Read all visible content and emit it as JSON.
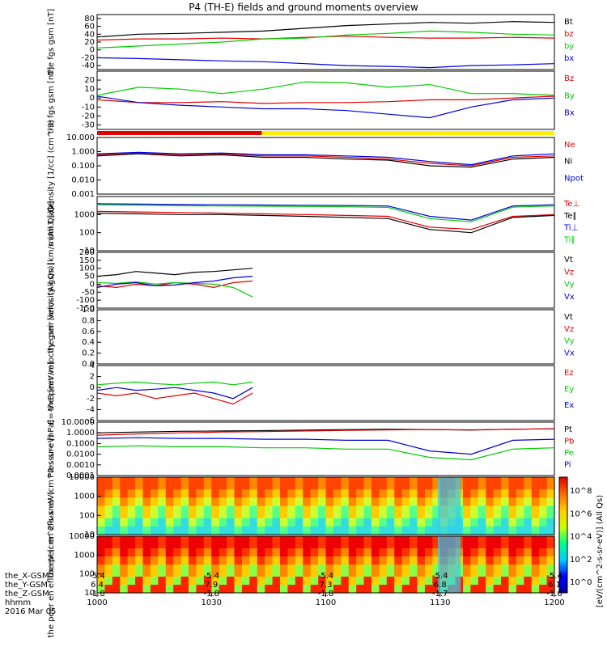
{
  "title": "P4 (TH-E) fields and ground moments overview",
  "colors": {
    "black": "#000000",
    "red": "#e00000",
    "green": "#00cc00",
    "blue": "#0000dd",
    "gold": "#ffee00"
  },
  "footer": {
    "row_labels": [
      "the_X-GSM",
      "the_Y-GSM",
      "the_Z-GSM",
      "hhmm",
      "2016 Mar 05"
    ],
    "columns": [
      {
        "x": "-5.4",
        "y": "6.4",
        "z": "-1.8",
        "t": "1000"
      },
      {
        "x": "-5.4",
        "y": "7.9",
        "z": "-1.8",
        "t": "1030"
      },
      {
        "x": "-5.4",
        "y": "7.3",
        "z": "-1.8",
        "t": "1100"
      },
      {
        "x": "-5.4",
        "y": "6.8",
        "z": "-1.7",
        "t": "1130"
      },
      {
        "x": "-5.4",
        "y": "6.1",
        "z": "-1.6",
        "t": "1200"
      }
    ]
  },
  "colorbar_label": "[eV/(cm^2-s-sr-eV)] (All Qs)",
  "colorbar_ticks": [
    "10^8",
    "10^6",
    "10^4",
    "10^2",
    "10^0"
  ],
  "chart_data": [
    {
      "type": "line",
      "ylabel": "the fgs gsm [nT]",
      "ylim": [
        -50,
        90
      ],
      "ticks": [
        "-40",
        "-20",
        "0",
        "20",
        "40",
        "60",
        "80"
      ],
      "series": [
        {
          "name": "Bt",
          "color": "#000000",
          "values": [
            33,
            40,
            42,
            45,
            48,
            55,
            62,
            66,
            70,
            68,
            72,
            70
          ]
        },
        {
          "name": "bz",
          "color": "#e00000",
          "values": [
            25,
            28,
            28,
            30,
            28,
            32,
            35,
            32,
            30,
            30,
            32,
            30
          ]
        },
        {
          "name": "by",
          "color": "#00cc00",
          "values": [
            5,
            10,
            15,
            20,
            28,
            30,
            38,
            42,
            48,
            45,
            40,
            38
          ]
        },
        {
          "name": "bx",
          "color": "#0000dd",
          "values": [
            -20,
            -22,
            -25,
            -28,
            -30,
            -35,
            -40,
            -42,
            -45,
            -40,
            -38,
            -35
          ]
        }
      ]
    },
    {
      "type": "line",
      "ylabel": "the fgs gsm [nT]",
      "ylim": [
        -35,
        30
      ],
      "ticks": [
        "-30",
        "-20",
        "-10",
        "0",
        "10",
        "20"
      ],
      "series": [
        {
          "name": "Bz",
          "color": "#e00000",
          "values": [
            -2,
            -5,
            -5,
            -4,
            -6,
            -5,
            -5,
            -4,
            -2,
            -2,
            0,
            2
          ]
        },
        {
          "name": "By",
          "color": "#00cc00",
          "values": [
            3,
            12,
            10,
            5,
            10,
            18,
            17,
            12,
            15,
            5,
            5,
            3
          ]
        },
        {
          "name": "Bx",
          "color": "#0000dd",
          "values": [
            2,
            -5,
            -8,
            -10,
            -12,
            -12,
            -14,
            -18,
            -22,
            -10,
            -2,
            0
          ]
        }
      ]
    },
    {
      "type": "line",
      "ylabel": "Density [1/cc] (cm^-3)",
      "ylim": [
        0.001,
        10
      ],
      "log": true,
      "ticks": [
        "0.001",
        "0.010",
        "0.100",
        "1.000",
        "10.000"
      ],
      "series": [
        {
          "name": "Ne",
          "color": "#e00000",
          "values": [
            0.6,
            0.8,
            0.6,
            0.7,
            0.5,
            0.5,
            0.4,
            0.3,
            0.15,
            0.1,
            0.4,
            0.5
          ]
        },
        {
          "name": "Ni",
          "color": "#000000",
          "values": [
            0.5,
            0.7,
            0.5,
            0.6,
            0.4,
            0.4,
            0.3,
            0.25,
            0.1,
            0.08,
            0.3,
            0.4
          ]
        },
        {
          "name": "Npot",
          "color": "#0000dd",
          "values": [
            0.7,
            0.9,
            0.7,
            0.8,
            0.6,
            0.6,
            0.5,
            0.4,
            0.2,
            0.12,
            0.5,
            0.7
          ]
        }
      ]
    },
    {
      "type": "line",
      "ylabel": "mom3 [eV]",
      "ylim": [
        10,
        10000
      ],
      "log": true,
      "ticks": [
        "10",
        "100",
        "1000"
      ],
      "series": [
        {
          "name": "Te⊥",
          "color": "#e00000",
          "values": [
            1500,
            1400,
            1300,
            1200,
            1100,
            1000,
            900,
            800,
            200,
            150,
            800,
            1000
          ]
        },
        {
          "name": "Te∥",
          "color": "#000000",
          "values": [
            1200,
            1100,
            1000,
            1000,
            900,
            800,
            700,
            600,
            150,
            100,
            700,
            900
          ]
        },
        {
          "name": "Ti⊥",
          "color": "#0000dd",
          "values": [
            4000,
            3800,
            3600,
            3500,
            3400,
            3300,
            3200,
            3000,
            800,
            500,
            3000,
            3500
          ]
        },
        {
          "name": "Ti∥",
          "color": "#00cc00",
          "values": [
            3500,
            3300,
            3100,
            3000,
            2900,
            2800,
            2700,
            2500,
            600,
            400,
            2600,
            3000
          ]
        }
      ]
    },
    {
      "type": "line",
      "ylabel": "the peir velocity gsm [km/s (All Qs)]",
      "ylim": [
        -150,
        200
      ],
      "ticks": [
        "-150",
        "-100",
        "-50",
        "0",
        "50",
        "100",
        "150",
        "200"
      ],
      "xend": 0.34,
      "series": [
        {
          "name": "Vt",
          "color": "#000000",
          "values": [
            50,
            60,
            80,
            70,
            60,
            75,
            80,
            90,
            100
          ]
        },
        {
          "name": "Vz",
          "color": "#e00000",
          "values": [
            -10,
            -20,
            0,
            -10,
            10,
            0,
            -20,
            10,
            20
          ]
        },
        {
          "name": "Vy",
          "color": "#00cc00",
          "values": [
            10,
            5,
            15,
            0,
            10,
            5,
            0,
            -20,
            -80
          ]
        },
        {
          "name": "Vx",
          "color": "#0000dd",
          "values": [
            -20,
            0,
            10,
            -10,
            -5,
            10,
            20,
            40,
            50
          ]
        }
      ]
    },
    {
      "type": "line",
      "ylabel": "the peer velocity gsm [km/s (All Qs)]",
      "ylim": [
        0,
        1.0
      ],
      "ticks": [
        "0.0",
        "0.2",
        "0.4",
        "0.6",
        "0.8",
        "1.0"
      ],
      "series": [
        {
          "name": "Vt",
          "color": "#000000",
          "values": []
        },
        {
          "name": "Vz",
          "color": "#e00000",
          "values": []
        },
        {
          "name": "Vy",
          "color": "#00cc00",
          "values": []
        },
        {
          "name": "Vx",
          "color": "#0000dd",
          "values": []
        }
      ]
    },
    {
      "type": "line",
      "ylabel": "E=-VxB [mV/m]",
      "ylim": [
        -6,
        4
      ],
      "ticks": [
        "-6",
        "-4",
        "-2",
        "0",
        "2",
        "4"
      ],
      "xend": 0.34,
      "series": [
        {
          "name": "Ez",
          "color": "#e00000",
          "values": [
            -1,
            -1.5,
            -1,
            -2,
            -1.5,
            -1,
            -2,
            -3,
            -1
          ]
        },
        {
          "name": "Ey",
          "color": "#00cc00",
          "values": [
            0.5,
            0.8,
            1,
            0.7,
            0.5,
            0.8,
            1,
            0.5,
            1
          ]
        },
        {
          "name": "Ex",
          "color": "#0000dd",
          "values": [
            -0.5,
            0,
            -0.5,
            -0.3,
            0,
            -0.5,
            -1,
            -2,
            0
          ]
        }
      ]
    },
    {
      "type": "line",
      "ylabel": "Pressure [nPa]",
      "ylim": [
        0.0001,
        10
      ],
      "log": true,
      "ticks": [
        "0.0001",
        "0.0010",
        "0.0100",
        "0.1000",
        "1.0000",
        "10.0000"
      ],
      "series": [
        {
          "name": "Pt",
          "color": "#000000",
          "values": [
            1.0,
            1.2,
            1.4,
            1.5,
            1.6,
            1.8,
            2,
            2.2,
            2.0,
            1.8,
            2.2,
            2.4
          ]
        },
        {
          "name": "Pb",
          "color": "#e00000",
          "values": [
            0.6,
            0.8,
            1.0,
            1.2,
            1.3,
            1.5,
            1.7,
            1.9,
            2.0,
            1.9,
            2.2,
            2.4
          ]
        },
        {
          "name": "Pe",
          "color": "#00cc00",
          "values": [
            0.05,
            0.06,
            0.05,
            0.05,
            0.04,
            0.04,
            0.03,
            0.03,
            0.005,
            0.003,
            0.03,
            0.04
          ]
        },
        {
          "name": "Pi",
          "color": "#0000dd",
          "values": [
            0.3,
            0.35,
            0.3,
            0.3,
            0.25,
            0.25,
            0.2,
            0.2,
            0.02,
            0.01,
            0.2,
            0.25
          ]
        }
      ]
    },
    {
      "type": "heatmap",
      "ylabel": "the peir en eflux eV (cm^2-s-sr-eV)",
      "ylim": [
        10,
        10000
      ],
      "log": true,
      "ticks": [
        "10",
        "100",
        "1000",
        "10000"
      ]
    },
    {
      "type": "heatmap",
      "ylabel": "the peer en eflux eV (cm^2-s-sr-eV)",
      "ylim": [
        10,
        10000
      ],
      "log": true,
      "ticks": [
        "10",
        "100",
        "1000",
        "10000"
      ]
    }
  ]
}
